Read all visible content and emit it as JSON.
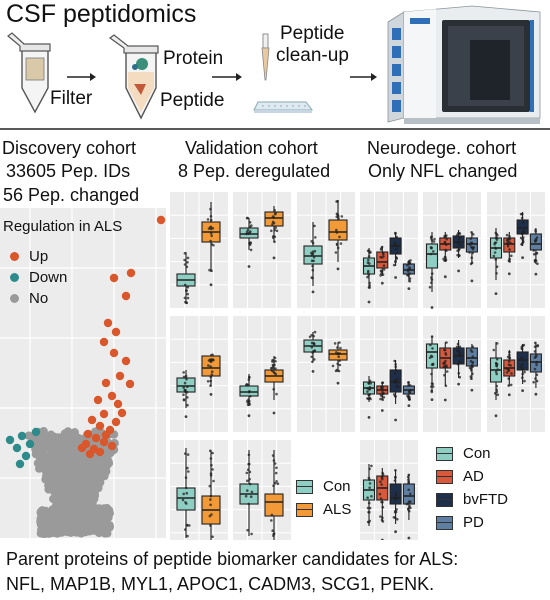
{
  "title": "CSF peptidomics",
  "workflow": {
    "filter_label": "Filter",
    "protein_label": "Protein",
    "peptide_label": "Peptide",
    "cleanup_line1": "Peptide",
    "cleanup_line2": "clean-up"
  },
  "discovery": {
    "line1": "Discovery cohort",
    "line2": "33605 Pep. IDs",
    "line3": "56 Pep. changed",
    "legend_title": "Regulation in ALS",
    "legend": [
      {
        "label": "Up",
        "color": "#d9572b"
      },
      {
        "label": "Down",
        "color": "#2e8b8b"
      },
      {
        "label": "No",
        "color": "#9a9a9a"
      }
    ]
  },
  "validation": {
    "line1": "Validation cohort",
    "line2": "8 Pep. deregulated",
    "legend": [
      {
        "label": "Con",
        "color": "#8fcfc3"
      },
      {
        "label": "ALS",
        "color": "#f29a38"
      }
    ]
  },
  "neuro": {
    "line1": "Neurodege. cohort",
    "line2": "Only NFL changed",
    "legend": [
      {
        "label": "Con",
        "color": "#8fcfc3"
      },
      {
        "label": "AD",
        "color": "#d9583b"
      },
      {
        "label": "bvFTD",
        "color": "#1d2f4a"
      },
      {
        "label": "PD",
        "color": "#5f7fa2"
      }
    ]
  },
  "footer": {
    "line1": "Parent proteins of peptide biomarker candidates for ALS:",
    "line2": "NFL, MAP1B, MYL1, APOC1, CADM3, SCG1, PENK."
  }
}
